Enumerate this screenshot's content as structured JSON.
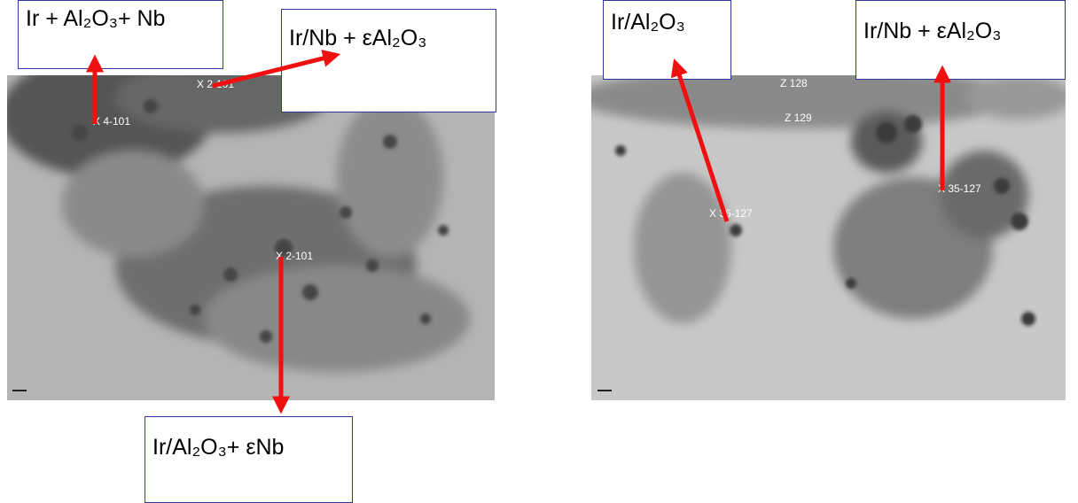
{
  "left_image": {
    "points": [
      "X 4-101",
      "X 2-101",
      "X 2-101"
    ]
  },
  "right_image": {
    "points": [
      "Z 128",
      "Z 129",
      "X 36-127",
      "X 35-127"
    ]
  },
  "labels": [
    "Ir + Al₂O₃+ Nb",
    "Ir/Nb + εAl₂O₃",
    "Ir/Al₂O₃+ εNb",
    "Ir/Al₂O₃",
    "Ir/Nb + εAl₂O₃"
  ]
}
